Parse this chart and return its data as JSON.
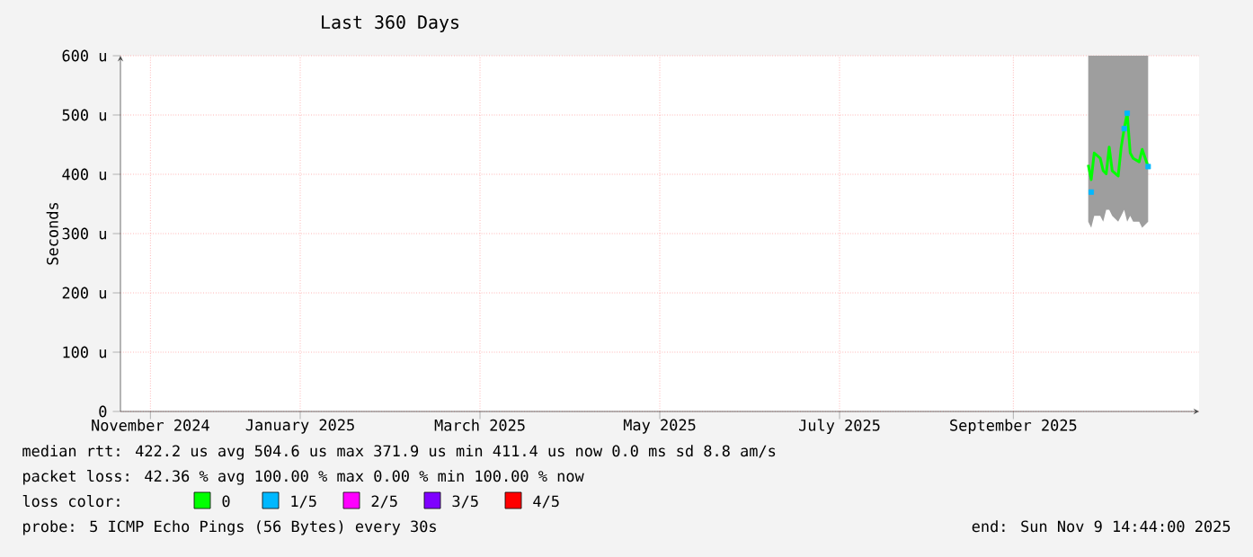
{
  "chart_data": {
    "type": "line",
    "title": "Last 360 Days",
    "ylabel": "Seconds",
    "xlim": [
      "2024-11-14",
      "2025-11-09"
    ],
    "xticks": [
      {
        "value": "2024-11-24",
        "label": "November 2024"
      },
      {
        "value": "2025-01-13",
        "label": "January 2025"
      },
      {
        "value": "2025-03-14",
        "label": "March 2025"
      },
      {
        "value": "2025-05-13",
        "label": "May 2025"
      },
      {
        "value": "2025-07-12",
        "label": "July 2025"
      },
      {
        "value": "2025-09-08",
        "label": "September 2025"
      }
    ],
    "ylim": [
      0,
      600
    ],
    "yticks": [
      0,
      {
        "value": 100,
        "label": "100 u"
      },
      {
        "value": 200,
        "label": "200 u"
      },
      {
        "value": 300,
        "label": "300 u"
      },
      {
        "value": 400,
        "label": "400 u"
      },
      {
        "value": 500,
        "label": "500 u"
      },
      {
        "value": 600,
        "label": "600 u"
      }
    ],
    "grid": true,
    "legend": "bottom",
    "line_style": "solid",
    "x": [
      "2025-10-03",
      "2025-10-04",
      "2025-10-05",
      "2025-10-07",
      "2025-10-08",
      "2025-10-09",
      "2025-10-10",
      "2025-10-11",
      "2025-10-13",
      "2025-10-14",
      "2025-10-15",
      "2025-10-16",
      "2025-10-17",
      "2025-10-18",
      "2025-10-20",
      "2025-10-21",
      "2025-10-23"
    ],
    "series": [
      {
        "name": "0",
        "color": "#00ff00",
        "values": [
          416,
          391,
          436,
          427,
          406,
          401,
          446,
          406,
          397,
          446,
          477,
          503,
          436,
          427,
          421,
          442,
          413
        ],
        "lower": [
          320,
          310,
          330,
          330,
          320,
          340,
          340,
          330,
          320,
          330,
          340,
          320,
          330,
          320,
          320,
          310,
          320
        ],
        "upper": [
          600,
          600,
          600,
          600,
          600,
          600,
          600,
          600,
          600,
          600,
          600,
          600,
          600,
          600,
          600,
          600,
          600
        ]
      },
      {
        "name": "1/5",
        "color": "#00b8ff",
        "type": "scatter",
        "marker": "square",
        "x": [
          "2025-10-04",
          "2025-10-15",
          "2025-10-16",
          "2025-10-23"
        ],
        "values": [
          370,
          477,
          503,
          413
        ]
      },
      {
        "name": "2/5",
        "color": "#ff00ff",
        "type": "scatter",
        "values": [
          null,
          null,
          null,
          null,
          null,
          null,
          null,
          null,
          null,
          null,
          null,
          null,
          null,
          null,
          null,
          null,
          null
        ]
      },
      {
        "name": "3/5",
        "color": "#7f00ff",
        "type": "scatter",
        "values": [
          null,
          null,
          null,
          null,
          null,
          null,
          null,
          null,
          null,
          null,
          null,
          null,
          null,
          null,
          null,
          null,
          null
        ]
      },
      {
        "name": "4/5",
        "color": "#ff0000",
        "type": "scatter",
        "values": [
          null,
          null,
          null,
          null,
          null,
          null,
          null,
          null,
          null,
          null,
          null,
          null,
          null,
          null,
          null,
          null,
          null
        ]
      }
    ],
    "annotations": [
      "median rtt: 422.2 us avg 504.6 us max 371.9 us min 411.4 us now 0.0 ms sd 8.8 am/s",
      "packet loss: 42.36 % avg 100.00 % max 0.00 % min 100.00 % now",
      "loss color:",
      "probe: 5 ICMP Echo Pings (56 Bytes) every 30s",
      "end: Sun Nov 9 14:44:00 2025"
    ]
  }
}
